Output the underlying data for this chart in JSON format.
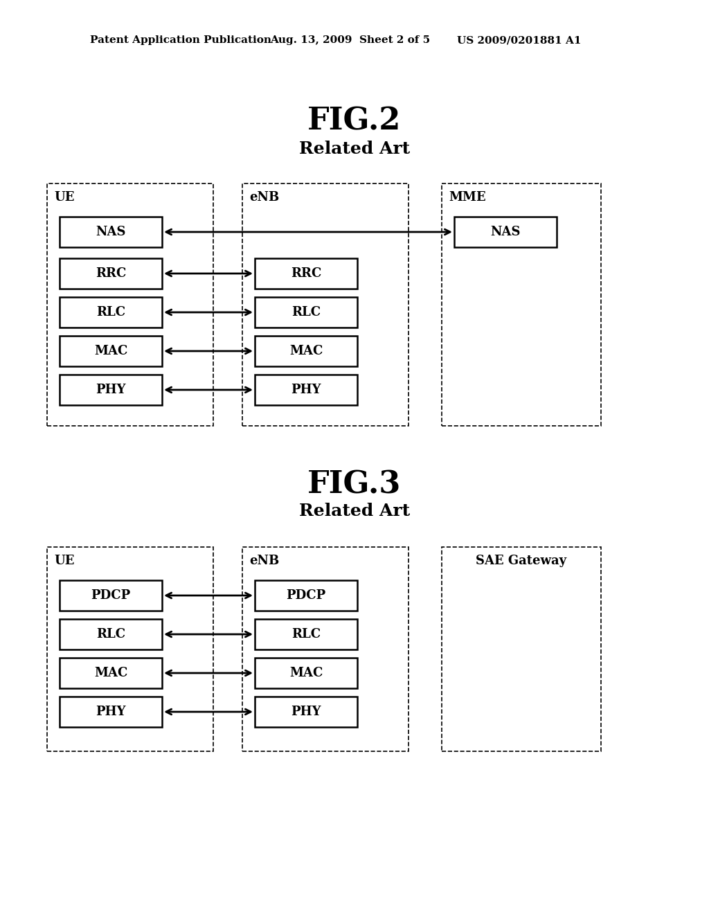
{
  "header_left": "Patent Application Publication",
  "header_mid": "Aug. 13, 2009  Sheet 2 of 5",
  "header_right": "US 2009/0201881 A1",
  "fig2_title": "FIG.2",
  "fig2_subtitle": "Related Art",
  "fig3_title": "FIG.3",
  "fig3_subtitle": "Related Art",
  "fig2": {
    "ue_label": "UE",
    "enb_label": "eNB",
    "mme_label": "MME",
    "ue_boxes": [
      "NAS",
      "RRC",
      "RLC",
      "MAC",
      "PHY"
    ],
    "enb_boxes": [
      "RRC",
      "RLC",
      "MAC",
      "PHY"
    ],
    "mme_boxes": [
      "NAS"
    ]
  },
  "fig3": {
    "ue_label": "UE",
    "enb_label": "eNB",
    "gw_label": "SAE Gateway",
    "ue_boxes": [
      "PDCP",
      "RLC",
      "MAC",
      "PHY"
    ],
    "enb_boxes": [
      "PDCP",
      "RLC",
      "MAC",
      "PHY"
    ]
  },
  "bg_color": "#ffffff",
  "text_color": "#000000"
}
